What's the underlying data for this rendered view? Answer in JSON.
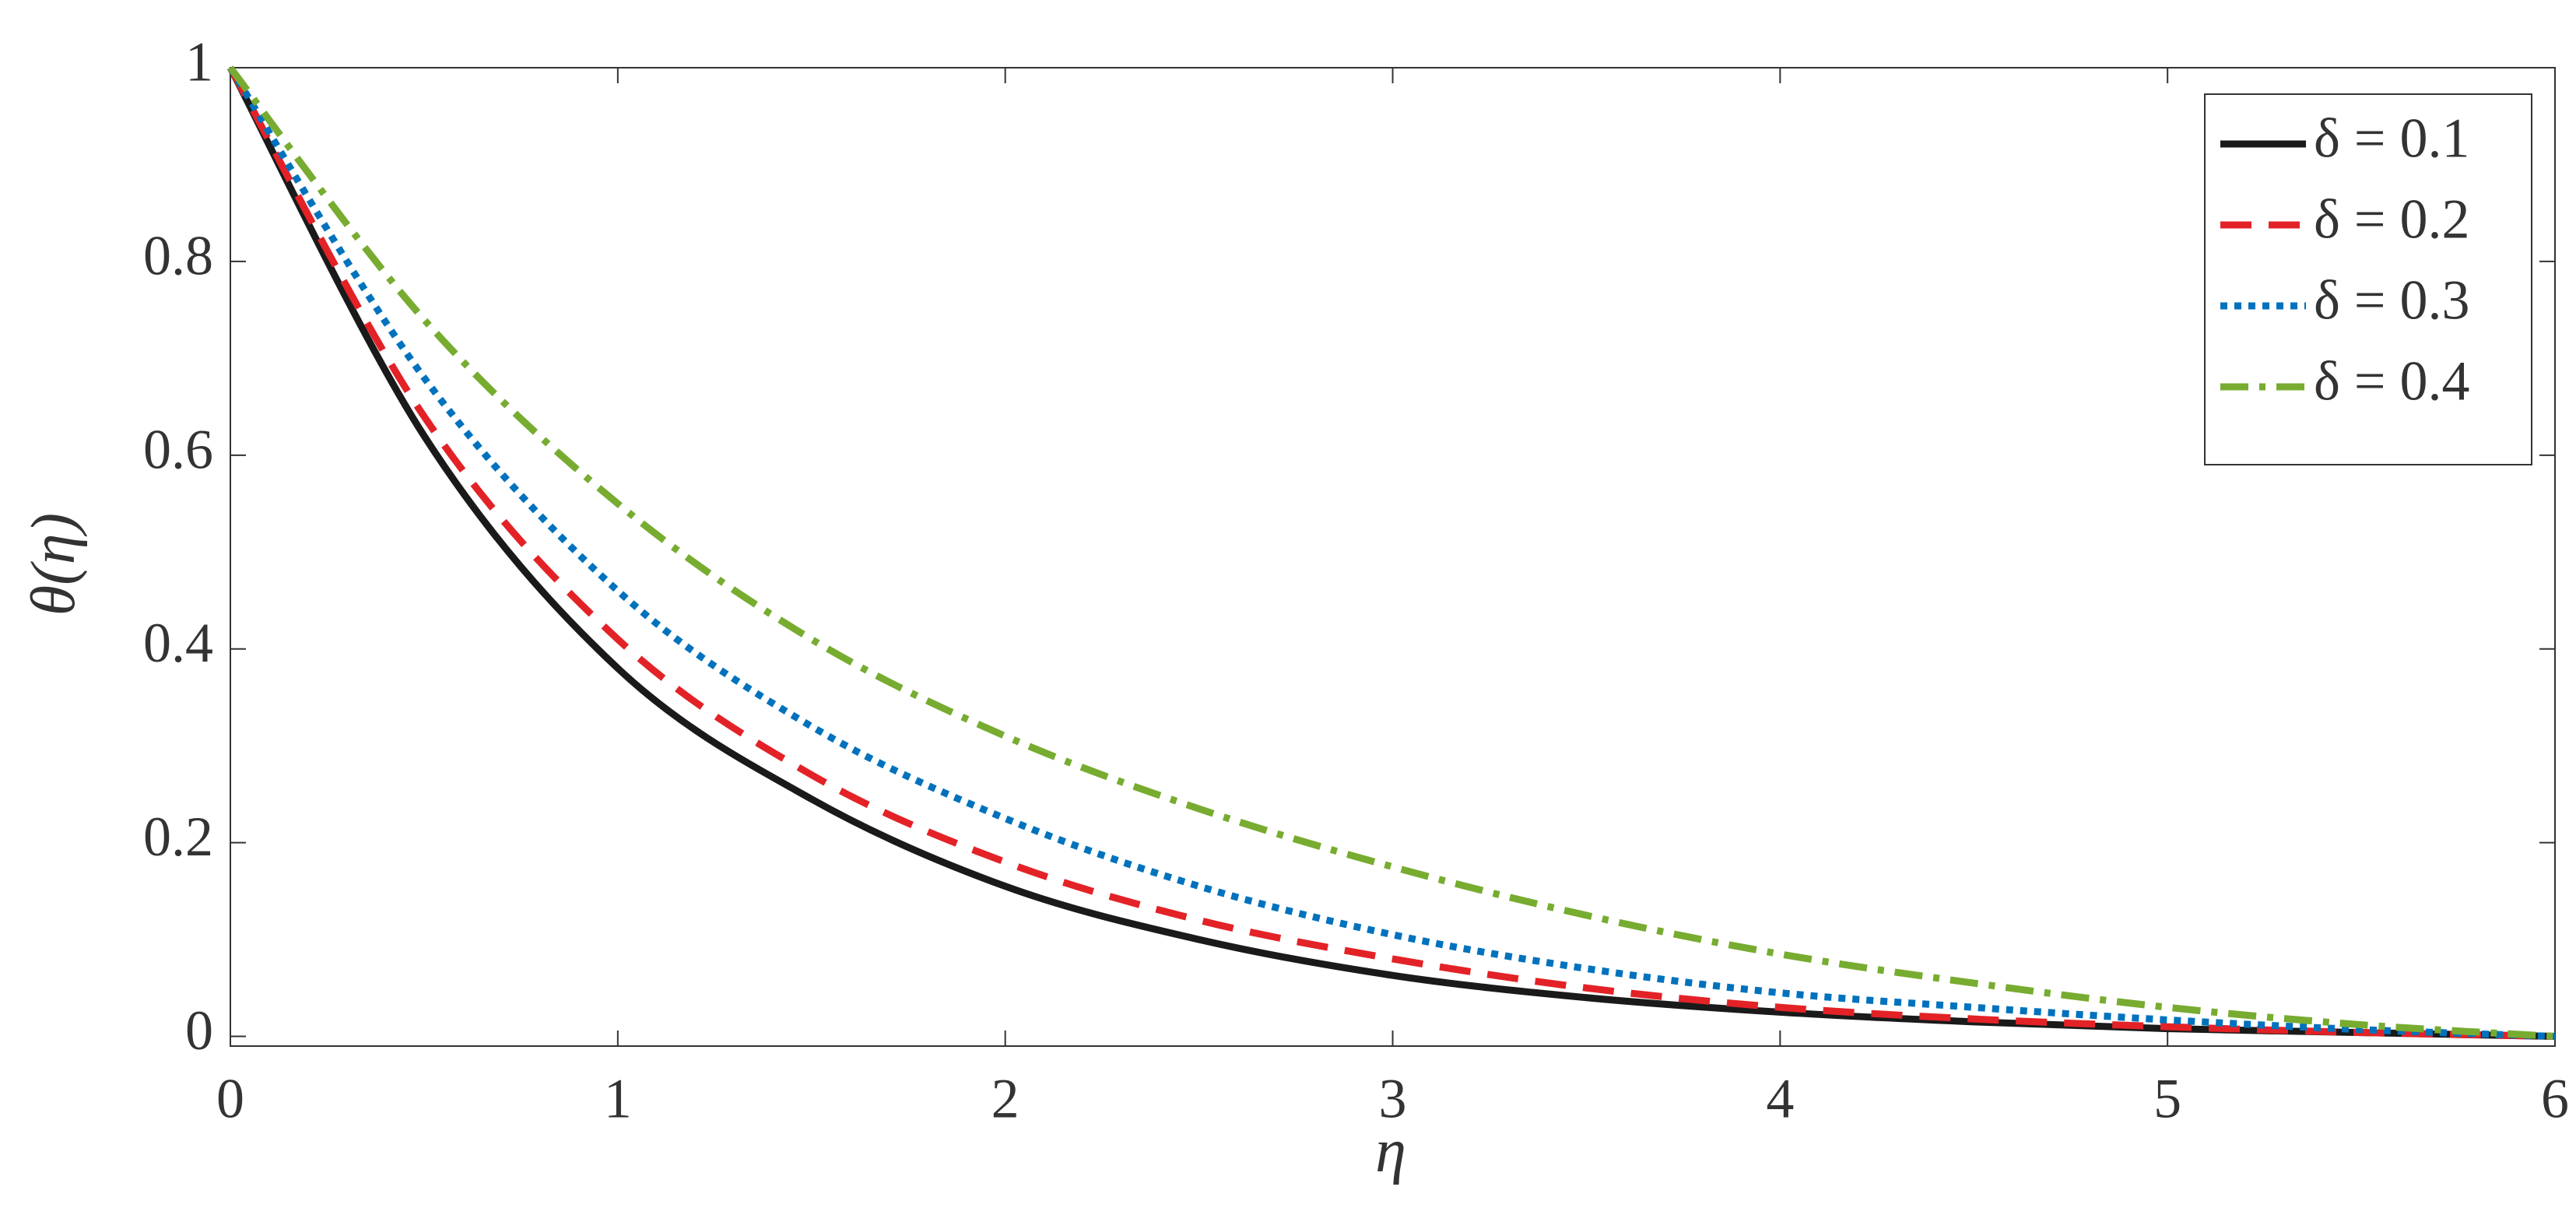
{
  "chart_data": {
    "type": "line",
    "xlabel": "η",
    "ylabel": "θ(η)",
    "x": [
      0,
      0.5,
      1,
      1.5,
      2,
      2.5,
      3,
      3.5,
      4,
      4.5,
      5,
      5.5,
      6
    ],
    "series": [
      {
        "name": "δ = 0.1",
        "color": "#1a1a1a",
        "dash": "solid",
        "values": [
          1,
          0.62,
          0.38,
          0.245,
          0.155,
          0.1,
          0.063,
          0.04,
          0.025,
          0.015,
          0.008,
          0.004,
          0
        ]
      },
      {
        "name": "δ = 0.2",
        "color": "#e32227",
        "dash": "dashed",
        "values": [
          1,
          0.64,
          0.41,
          0.27,
          0.18,
          0.12,
          0.08,
          0.05,
          0.03,
          0.018,
          0.01,
          0.004,
          0
        ]
      },
      {
        "name": "δ = 0.3",
        "color": "#0072bd",
        "dash": "dotted",
        "values": [
          1,
          0.68,
          0.46,
          0.32,
          0.225,
          0.155,
          0.105,
          0.07,
          0.045,
          0.03,
          0.017,
          0.007,
          0
        ]
      },
      {
        "name": "δ = 0.4",
        "color": "#77ac30",
        "dash": "dashdot",
        "values": [
          1,
          0.74,
          0.55,
          0.41,
          0.31,
          0.235,
          0.175,
          0.125,
          0.085,
          0.055,
          0.03,
          0.012,
          0
        ]
      }
    ],
    "xlim": [
      0,
      6
    ],
    "ylim": [
      -0.01,
      1
    ],
    "xticks": [
      0,
      1,
      2,
      3,
      4,
      5,
      6
    ],
    "yticks": [
      0,
      0.2,
      0.4,
      0.6,
      0.8,
      1
    ],
    "legend": "upper right"
  }
}
